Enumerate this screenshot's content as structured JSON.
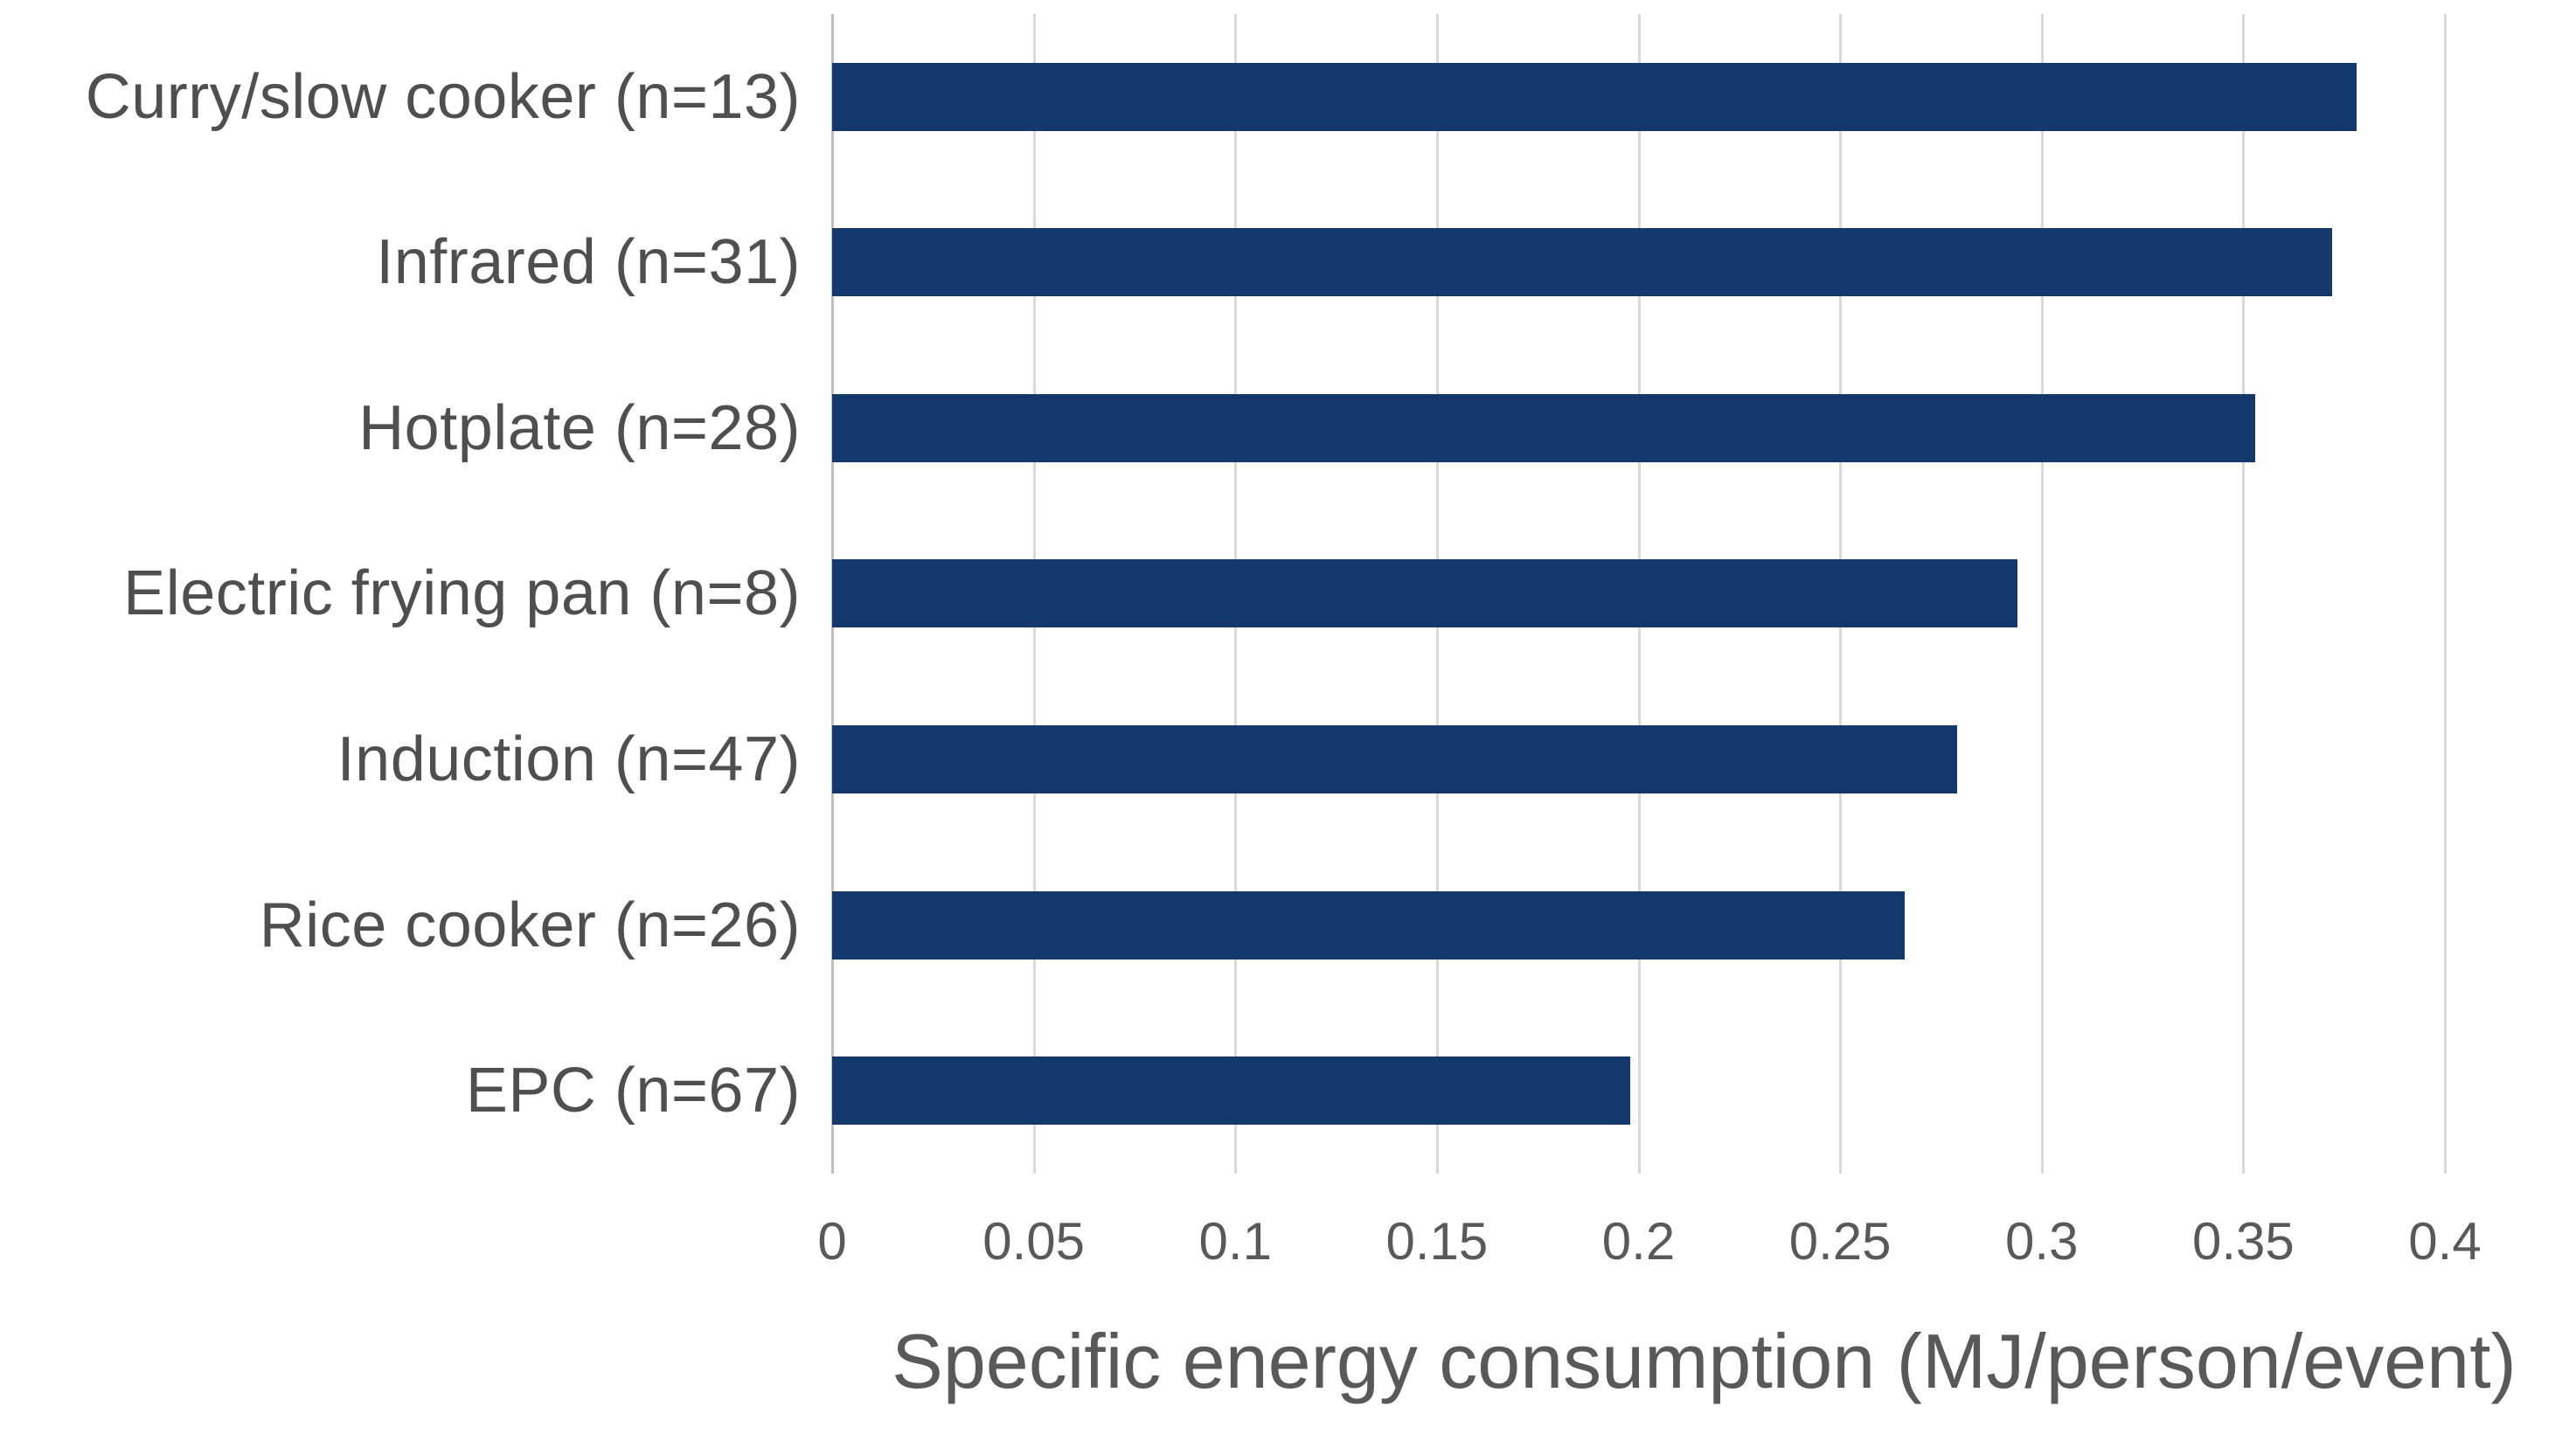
{
  "chart_data": {
    "type": "bar",
    "orientation": "horizontal",
    "categories": [
      "Curry/slow cooker (n=13)",
      "Infrared (n=31)",
      "Hotplate (n=28)",
      "Electric frying pan (n=8)",
      "Induction (n=47)",
      "Rice cooker (n=26)",
      "EPC (n=67)"
    ],
    "values": [
      0.378,
      0.372,
      0.353,
      0.294,
      0.279,
      0.266,
      0.198
    ],
    "xlabel": "Specific energy consumption (MJ/person/event)",
    "xlim": [
      0,
      0.4
    ],
    "x_ticks": [
      "0",
      "0.05",
      "0.1",
      "0.15",
      "0.2",
      "0.25",
      "0.3",
      "0.35",
      "0.4"
    ],
    "x_tick_values": [
      0,
      0.05,
      0.1,
      0.15,
      0.2,
      0.25,
      0.3,
      0.35,
      0.4
    ],
    "grid": "vertical-gridlines",
    "legend": "none",
    "bar_color": "#14386b",
    "gridline_color": "#d9d9d9",
    "axis_line_color": "#bfbfbf",
    "text_color": "#595959",
    "background_color": "#ffffff"
  }
}
